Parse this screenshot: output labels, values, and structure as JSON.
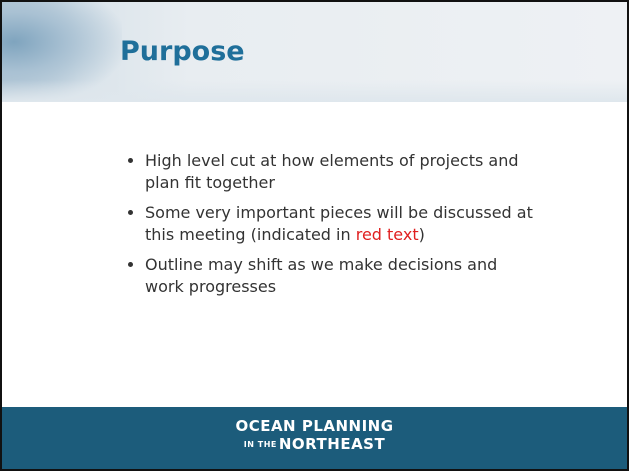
{
  "header": {
    "title": "Purpose"
  },
  "bullets": [
    {
      "parts": [
        "High level cut at how elements of projects and plan fit together"
      ]
    },
    {
      "parts": [
        "Some very important pieces will be discussed at this meeting (indicated in ",
        "red text",
        ")"
      ]
    },
    {
      "parts": [
        "Outline may shift as we make decisions and work progresses"
      ]
    }
  ],
  "footer": {
    "logo_line1": "OCEAN PLANNING",
    "logo_small": "IN THE",
    "logo_line2": "NORTHEAST"
  }
}
